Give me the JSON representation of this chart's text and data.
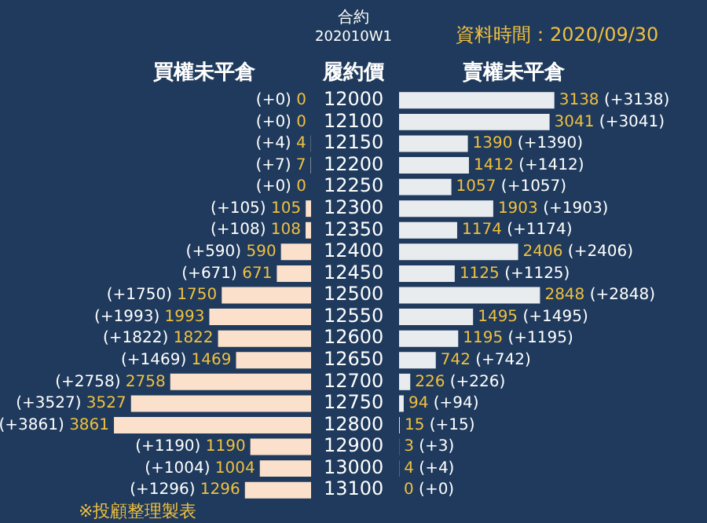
{
  "chart_data": [
    {
      "type": "bar",
      "orientation": "horizontal",
      "title": "合約",
      "subtitle": "202010W1",
      "xlabel": "買權未平倉",
      "ylabel": "履約價",
      "categories": [
        "12000",
        "12100",
        "12150",
        "12200",
        "12250",
        "12300",
        "12350",
        "12400",
        "12450",
        "12500",
        "12550",
        "12600",
        "12650",
        "12700",
        "12750",
        "12800",
        "12900",
        "13000",
        "13100"
      ],
      "series": [
        {
          "color": "#fbe1cb",
          "values": [
            0,
            0,
            4,
            7,
            0,
            105,
            108,
            590,
            671,
            1750,
            1993,
            1822,
            1469,
            2758,
            3527,
            3861,
            1190,
            1004,
            1296
          ],
          "value_labels": [
            "(+0) 0",
            "(+0) 0",
            "(+4) 4",
            "(+7) 7",
            "(+0) 0",
            "(+105) 105",
            "(+108) 108",
            "(+590) 590",
            "(+671) 671",
            "(+1750) 1750",
            "(+1993) 1993",
            "(+1822) 1822",
            "(+1469) 1469",
            "(+2758) 2758",
            "(+3527) 3527",
            "(+3861) 3861",
            "(+1190) 1190",
            "(+1004) 1004",
            "(+1296) 1296"
          ]
        }
      ],
      "tick_labels": "y",
      "legend": false
    },
    {
      "type": "bar",
      "orientation": "horizontal",
      "xlabel": "賣權未平倉",
      "annotations": [
        "資料時間：2020/09/30",
        "※投顧整理製表"
      ],
      "categories": [
        "12000",
        "12100",
        "12150",
        "12200",
        "12250",
        "12300",
        "12350",
        "12400",
        "12450",
        "12500",
        "12550",
        "12600",
        "12650",
        "12700",
        "12750",
        "12800",
        "12900",
        "13000",
        "13100"
      ],
      "series": [
        {
          "color": "#e9ecef",
          "values": [
            3138,
            3041,
            1390,
            1412,
            1057,
            1903,
            1174,
            2406,
            1125,
            2848,
            1495,
            1195,
            742,
            226,
            94,
            15,
            3,
            4,
            0
          ],
          "value_labels": [
            "3138 (+3138)",
            "3041 (+3041)",
            "1390 (+1390)",
            "1412 (+1412)",
            "1057 (+1057)",
            "1903 (+1903)",
            "1174 (+1174)",
            "2406 (+2406)",
            "1125 (+1125)",
            "2848 (+2848)",
            "1495 (+1495)",
            "1195 (+1195)",
            "742 (+742)",
            "226 (+226)",
            "94 (+94)",
            "15 (+15)",
            "3 (+3)",
            "4 (+4)",
            "0 (+0)"
          ]
        }
      ],
      "tick_labels": false,
      "legend": false
    }
  ]
}
